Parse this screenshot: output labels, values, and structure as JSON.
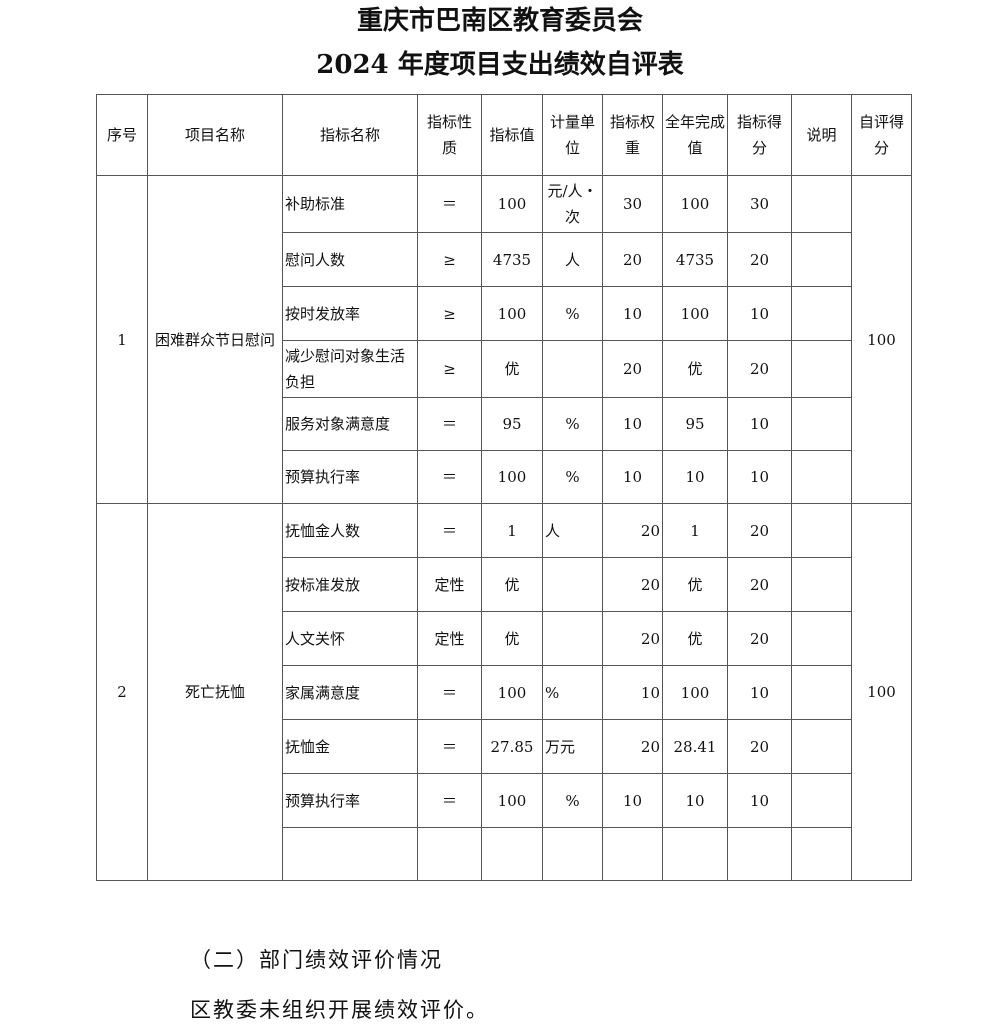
{
  "title_line1": "重庆市巴南区教育委员会",
  "title_line2": "2024 年度项目支出绩效自评表",
  "table": {
    "headers": [
      "序号",
      "项目名称",
      "指标名称",
      "指标性质",
      "指标值",
      "计量单位",
      "指标权重",
      "全年完成值",
      "指标得分",
      "说明",
      "自评得分"
    ],
    "projects": [
      {
        "no": "1",
        "name": "困难群众节日慰问",
        "self_score": "100",
        "rows": [
          [
            "补助标准",
            "＝",
            "100",
            "元/人・次",
            "30",
            "100",
            "30",
            ""
          ],
          [
            "慰问人数",
            "≥",
            "4735",
            "人",
            "20",
            "4735",
            "20",
            ""
          ],
          [
            "按时发放率",
            "≥",
            "100",
            "%",
            "10",
            "100",
            "10",
            ""
          ],
          [
            "减少慰问对象生活负担",
            "≥",
            "优",
            "",
            "20",
            "优",
            "20",
            ""
          ],
          [
            "服务对象满意度",
            "＝",
            "95",
            "%",
            "10",
            "95",
            "10",
            ""
          ],
          [
            "预算执行率",
            "＝",
            "100",
            "%",
            "10",
            "10",
            "10",
            ""
          ]
        ]
      },
      {
        "no": "2",
        "name": "死亡抚恤",
        "self_score": "100",
        "rows": [
          [
            "抚恤金人数",
            "＝",
            "1",
            "人",
            "20",
            "1",
            "20",
            ""
          ],
          [
            "按标准发放",
            "定性",
            "优",
            "",
            "20",
            "优",
            "20",
            ""
          ],
          [
            "人文关怀",
            "定性",
            "优",
            "",
            "20",
            "优",
            "20",
            ""
          ],
          [
            "家属满意度",
            "＝",
            "100",
            "%",
            "10",
            "100",
            "10",
            ""
          ],
          [
            "抚恤金",
            "＝",
            "27.85",
            "万元",
            "20",
            "28.41",
            "20",
            ""
          ],
          [
            "预算执行率",
            "＝",
            "100",
            "%",
            "10",
            "10",
            "10",
            ""
          ],
          [
            "",
            "",
            "",
            "",
            "",
            "",
            "",
            ""
          ]
        ]
      }
    ]
  },
  "section_heading": "（二）部门绩效评价情况",
  "section_text": "区教委未组织开展绩效评价。"
}
